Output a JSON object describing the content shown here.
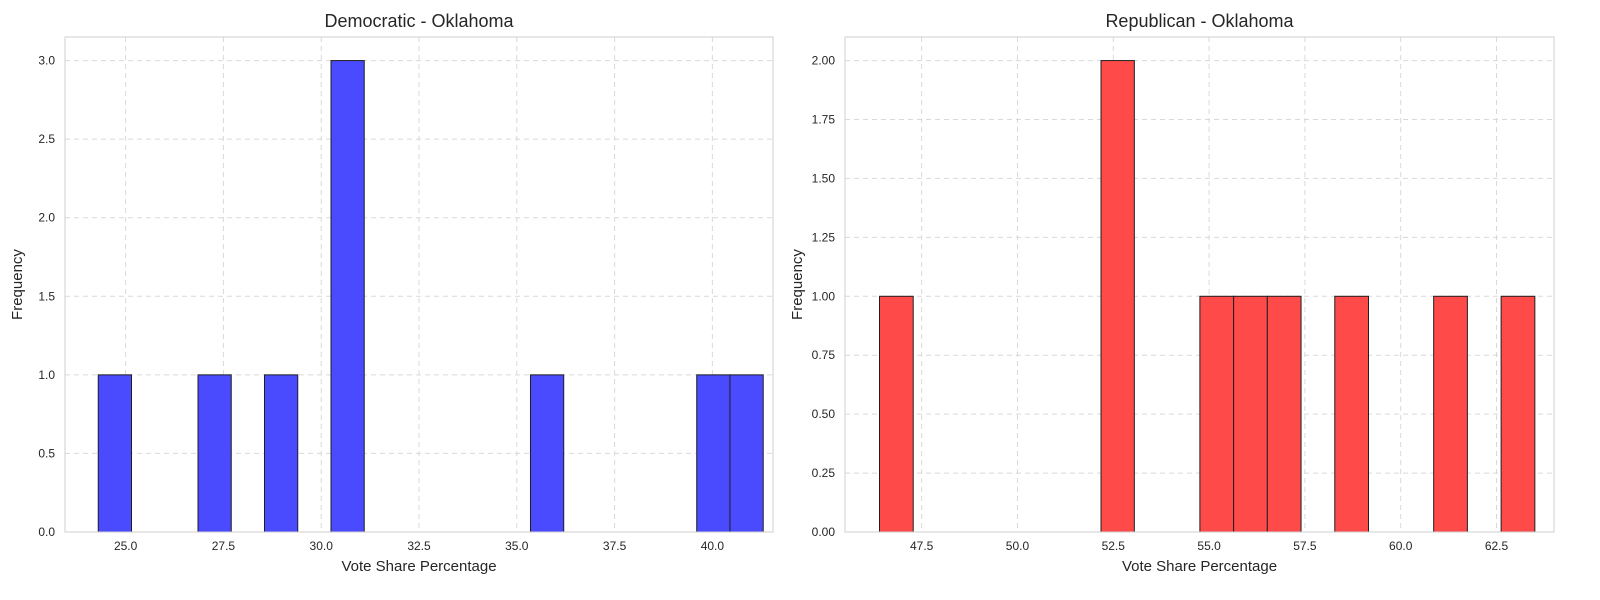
{
  "chart_data": [
    {
      "type": "bar",
      "title": "Democratic - Oklahoma",
      "xlabel": "Vote Share Percentage",
      "ylabel": "Frequency",
      "color": "#4a4aff",
      "xlim": [
        23.45,
        41.55
      ],
      "ylim": [
        0,
        3.15
      ],
      "xticks": [
        25.0,
        27.5,
        30.0,
        32.5,
        35.0,
        37.5,
        40.0
      ],
      "xtick_labels": [
        "25.0",
        "27.5",
        "30.0",
        "32.5",
        "35.0",
        "37.5",
        "40.0"
      ],
      "yticks": [
        0.0,
        0.5,
        1.0,
        1.5,
        2.0,
        2.5,
        3.0
      ],
      "ytick_labels": [
        "0.0",
        "0.5",
        "1.0",
        "1.5",
        "2.0",
        "2.5",
        "3.0"
      ],
      "grid": true,
      "bins": [
        {
          "x0": 24.3,
          "x1": 25.15,
          "count": 1
        },
        {
          "x0": 26.85,
          "x1": 27.7,
          "count": 1
        },
        {
          "x0": 28.55,
          "x1": 29.4,
          "count": 1
        },
        {
          "x0": 30.25,
          "x1": 31.1,
          "count": 3
        },
        {
          "x0": 35.35,
          "x1": 36.2,
          "count": 1
        },
        {
          "x0": 39.6,
          "x1": 40.45,
          "count": 1
        },
        {
          "x0": 40.45,
          "x1": 41.3,
          "count": 1
        }
      ]
    },
    {
      "type": "bar",
      "title": "Republican - Oklahoma",
      "xlabel": "Vote Share Percentage",
      "ylabel": "Frequency",
      "color": "#ff4a4a",
      "xlim": [
        45.5,
        64.0
      ],
      "ylim": [
        0,
        2.1
      ],
      "xticks": [
        47.5,
        50.0,
        52.5,
        55.0,
        57.5,
        60.0,
        62.5
      ],
      "xtick_labels": [
        "47.5",
        "50.0",
        "52.5",
        "55.0",
        "57.5",
        "60.0",
        "62.5"
      ],
      "yticks": [
        0.0,
        0.25,
        0.5,
        0.75,
        1.0,
        1.25,
        1.5,
        1.75,
        2.0
      ],
      "ytick_labels": [
        "0.00",
        "0.25",
        "0.50",
        "0.75",
        "1.00",
        "1.25",
        "1.50",
        "1.75",
        "2.00"
      ],
      "grid": true,
      "bins": [
        {
          "x0": 46.4,
          "x1": 47.28,
          "count": 1
        },
        {
          "x0": 52.18,
          "x1": 53.05,
          "count": 2
        },
        {
          "x0": 54.76,
          "x1": 55.64,
          "count": 1
        },
        {
          "x0": 55.64,
          "x1": 56.52,
          "count": 1
        },
        {
          "x0": 56.52,
          "x1": 57.4,
          "count": 1
        },
        {
          "x0": 58.28,
          "x1": 59.16,
          "count": 1
        },
        {
          "x0": 60.86,
          "x1": 61.74,
          "count": 1
        },
        {
          "x0": 62.62,
          "x1": 63.5,
          "count": 1
        }
      ]
    }
  ]
}
